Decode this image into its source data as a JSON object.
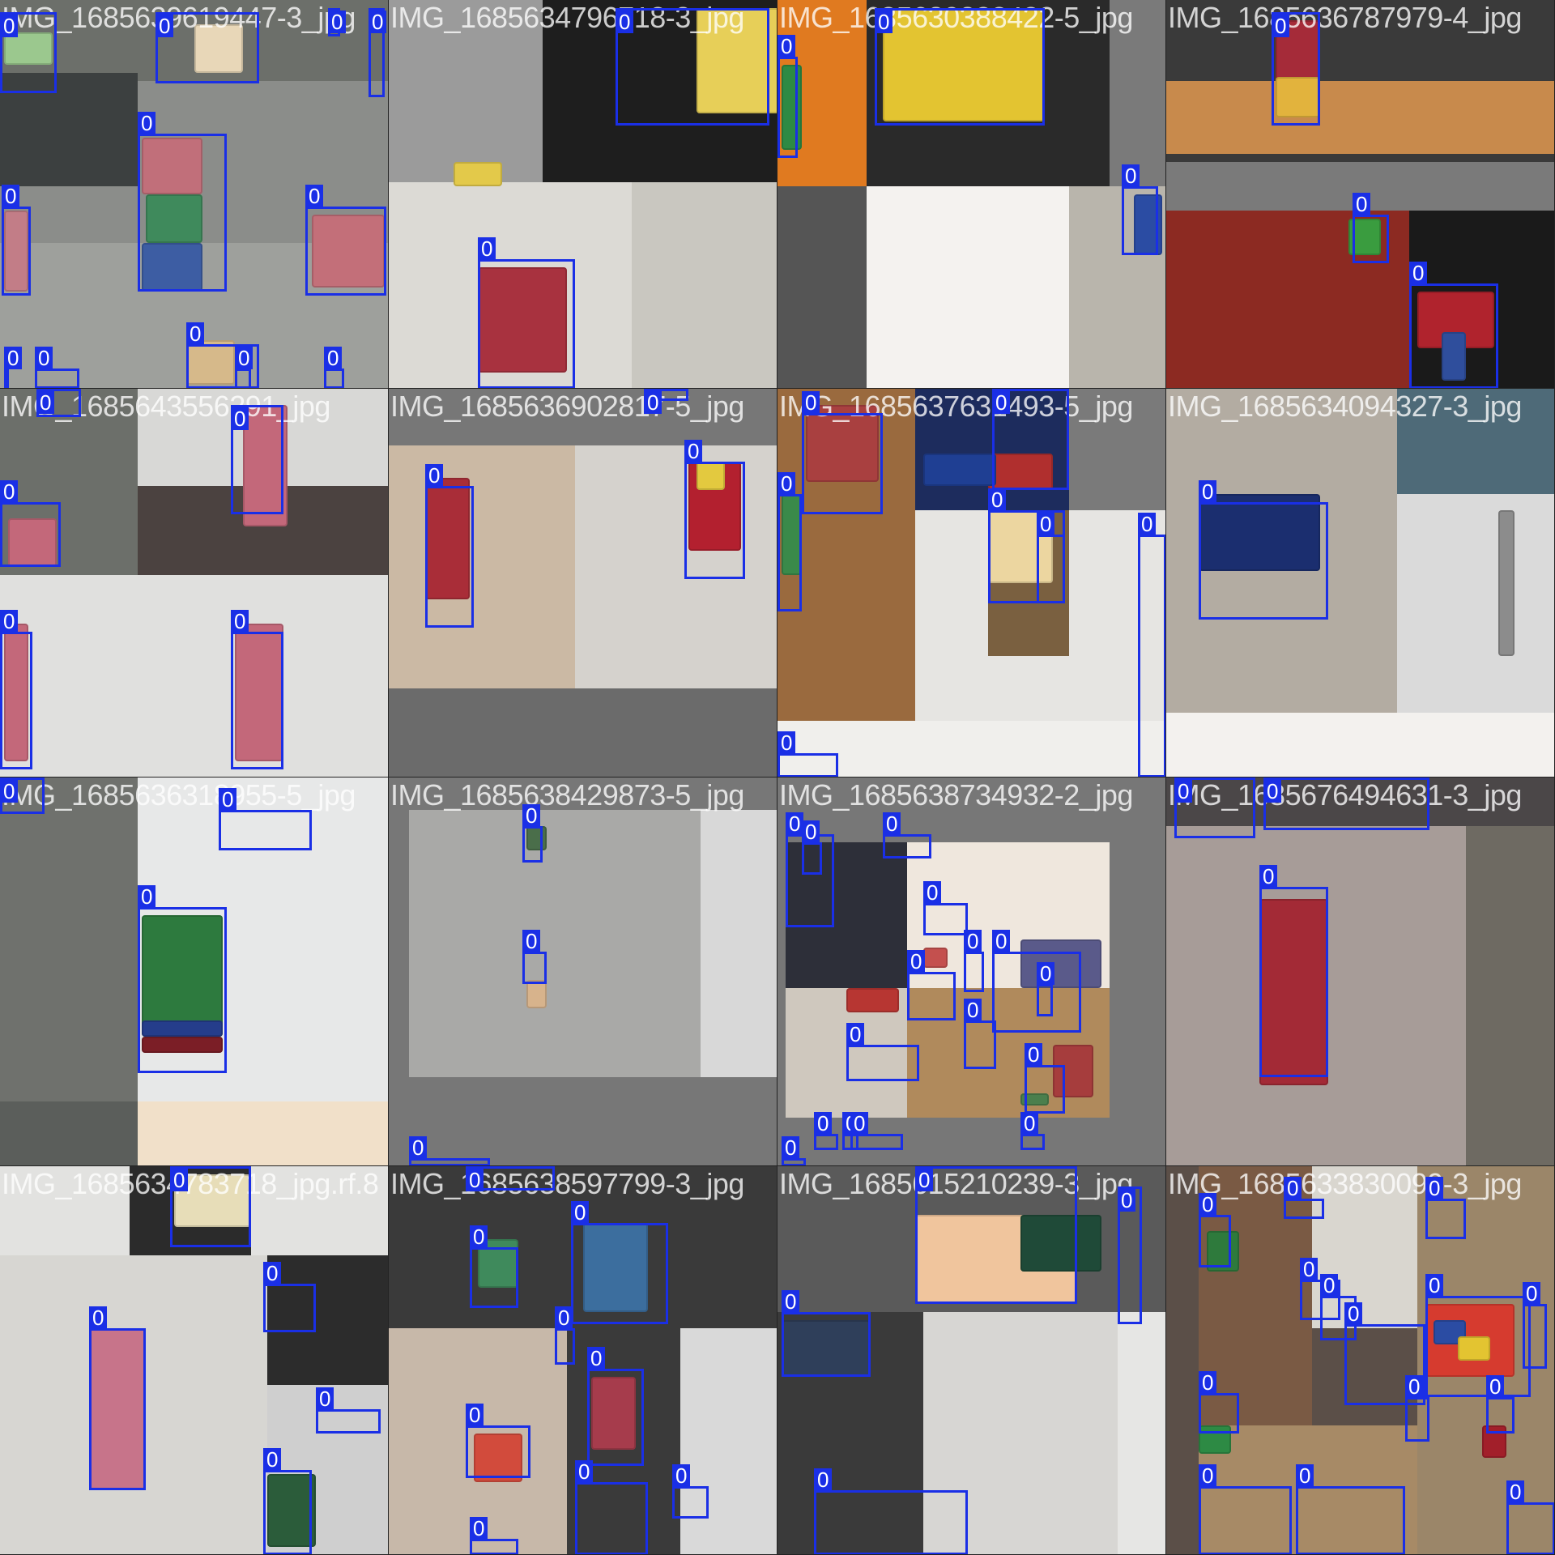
{
  "mosaic": {
    "class_label": "0",
    "box_color": "#1a2fe6",
    "tiles": [
      {
        "caption": "IMG_1685639619447-3_jpg"
      },
      {
        "caption": "IMG_1685634796718-3_jpg"
      },
      {
        "caption": "IMG_1685630388422-5_jpg"
      },
      {
        "caption": "IMG_1685636787979-4_jpg"
      },
      {
        "caption": "IMG_1685643556291_jpg"
      },
      {
        "caption": "IMG_1685636902817-5_jpg"
      },
      {
        "caption": "IMG_1685637631493-5_jpg"
      },
      {
        "caption": "IMG_1685634094327-3_jpg"
      },
      {
        "caption": "IMG_1685636318955-5_jpg"
      },
      {
        "caption": "IMG_1685638429873-5_jpg"
      },
      {
        "caption": "IMG_1685638734932-2_jpg"
      },
      {
        "caption": "IMG_1685676494631-3_jpg"
      },
      {
        "caption": "IMG_1685634783718_jpg.rf.8"
      },
      {
        "caption": "IMG_1685638597799-3_jpg"
      },
      {
        "caption": "IMG_1685615210239-3_jpg"
      },
      {
        "caption": "IMG_1685633830099-3_jpg"
      }
    ]
  }
}
